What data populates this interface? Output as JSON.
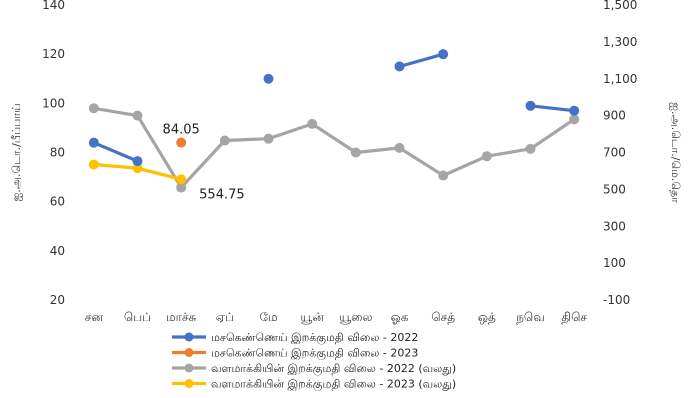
{
  "chart_data": {
    "type": "line",
    "title": "",
    "categories": [
      "சன",
      "பெப்",
      "மாச்சு",
      "ஏப்",
      "மே",
      "யூன்",
      "யூலை",
      "ஓக",
      "செத்",
      "ஒத்",
      "நவெ",
      "திசெ"
    ],
    "ylabel": "ஐ.அ.டொ./பீப்பாய்",
    "y2label": "ஐ.அ.டொ./மெ.தொ",
    "ylim": [
      20,
      140
    ],
    "y2lim": [
      -100,
      1500
    ],
    "yticks": [
      20,
      40,
      60,
      80,
      100,
      120,
      140
    ],
    "y2ticks": [
      -100,
      100,
      300,
      500,
      700,
      900,
      1100,
      1300,
      1500
    ],
    "y2tick_labels": [
      "-100",
      "100",
      "300",
      "500",
      "700",
      "900",
      "1,100",
      "1,300",
      "1,500"
    ],
    "grid": false,
    "legend_position": "bottom",
    "series": [
      {
        "name": "மசகெண்ணெய் இறக்குமதி விலை - 2022",
        "axis": "left",
        "color": "#4472C4",
        "values": [
          84,
          76.5,
          null,
          null,
          110,
          null,
          null,
          115,
          120,
          null,
          99,
          97
        ]
      },
      {
        "name": "மசகெண்ணெய் இறக்குமதி விலை - 2023",
        "axis": "left",
        "color": "#ED7D31",
        "values": [
          null,
          null,
          84.05,
          null,
          null,
          null,
          null,
          null,
          null,
          null,
          null,
          null
        ]
      },
      {
        "name": "வளமாக்கியின் இறக்குமதி விலை - 2022 (வலது)",
        "axis": "right",
        "color": "#A5A5A5",
        "values": [
          940,
          900,
          510,
          765,
          775,
          855,
          700,
          725,
          575,
          680,
          720,
          880
        ]
      },
      {
        "name": "வளமாக்கியின் இறக்குமதி விலை - 2023 (வலது)",
        "axis": "right",
        "color": "#FFC000",
        "values": [
          635,
          615,
          554.75,
          null,
          null,
          null,
          null,
          null,
          null,
          null,
          null,
          null
        ]
      }
    ],
    "annotations": [
      {
        "text": "84.05",
        "series": 1,
        "index": 2
      },
      {
        "text": "554.75",
        "series": 3,
        "index": 2
      }
    ]
  }
}
